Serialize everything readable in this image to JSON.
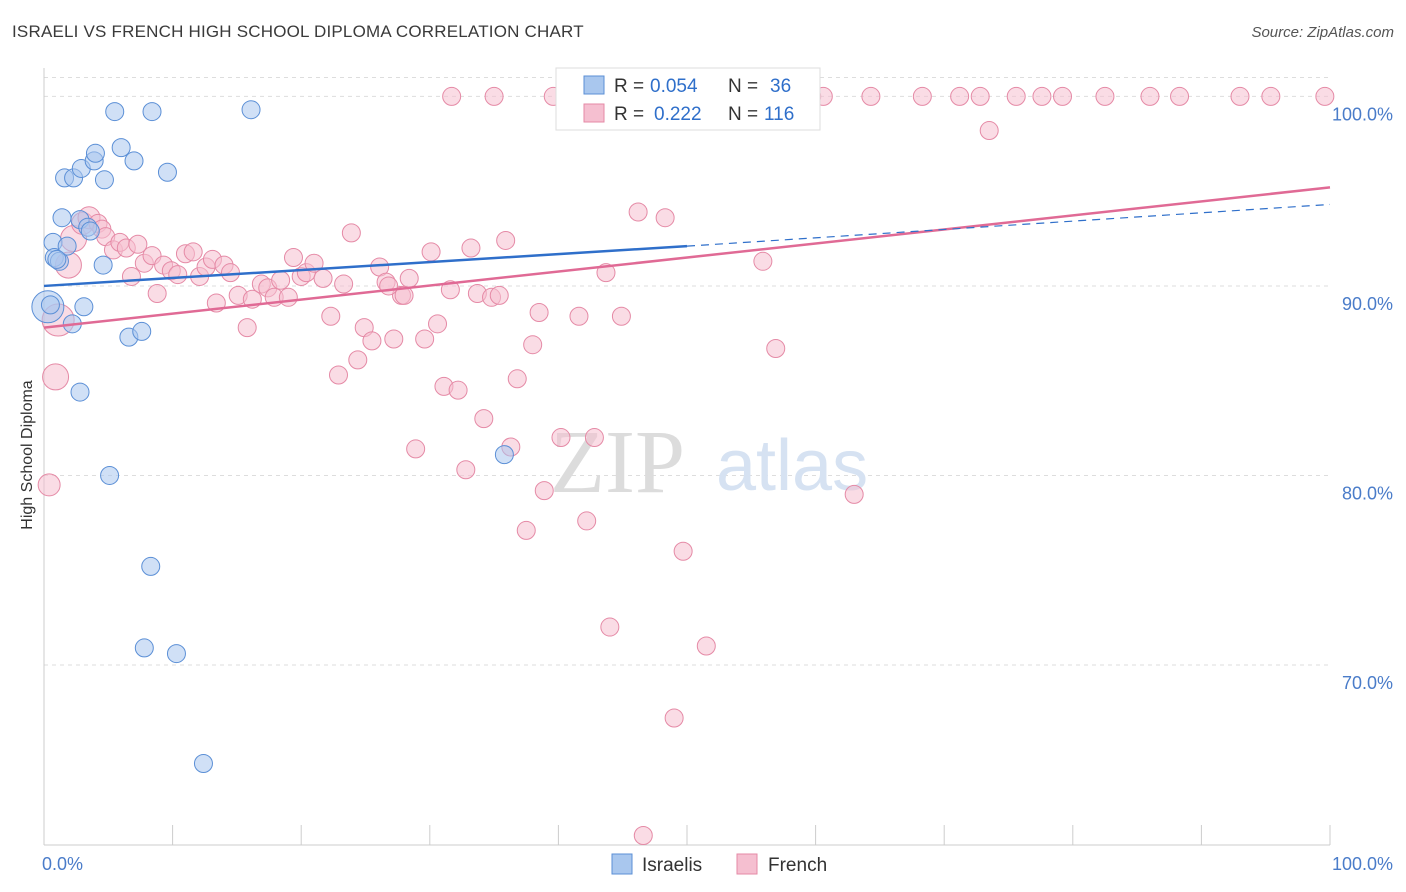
{
  "title": "ISRAELI VS FRENCH HIGH SCHOOL DIPLOMA CORRELATION CHART",
  "source": "Source: ZipAtlas.com",
  "watermark": {
    "zip": "ZIP",
    "atlas": "atlas"
  },
  "colors": {
    "israelis_fill": "#a9c7ee",
    "israelis_stroke": "#5b8fd6",
    "israelis_line": "#2f6fca",
    "french_fill": "#f5bfd0",
    "french_stroke": "#e58aa6",
    "french_line": "#e06a95",
    "tick_label": "#4a7cc9",
    "grid": "#dddddd"
  },
  "legend": {
    "rows": [
      {
        "r_label": "R =",
        "r_value": "0.054",
        "n_label": "N =",
        "n_value": "36"
      },
      {
        "r_label": "R =",
        "r_value": "0.222",
        "n_label": "N =",
        "n_value": "116"
      }
    ]
  },
  "bottom_legend": [
    "Israelis",
    "French"
  ],
  "chart_data": {
    "type": "scatter",
    "title": "ISRAELI VS FRENCH HIGH SCHOOL DIPLOMA CORRELATION CHART",
    "xlabel": "",
    "ylabel": "High School Diploma",
    "xlim": [
      0,
      100
    ],
    "ylim": [
      60.5,
      101.5
    ],
    "x_tick_labels": [
      "0.0%",
      "100.0%"
    ],
    "y_ticks": [
      70,
      80,
      90,
      100
    ],
    "y_tick_labels": [
      "70.0%",
      "80.0%",
      "90.0%",
      "100.0%"
    ],
    "grid": true,
    "legend_placement": "top-center",
    "series": [
      {
        "name": "Israelis",
        "r": 0.054,
        "n": 36,
        "trend": {
          "x": [
            0,
            50
          ],
          "y": [
            90.0,
            92.1
          ],
          "dashed_to": [
            100,
            94.3
          ]
        },
        "points": [
          [
            0.3,
            88.9,
            16
          ],
          [
            0.7,
            92.3,
            9
          ],
          [
            0.8,
            91.5,
            9
          ],
          [
            1.2,
            91.3,
            9
          ],
          [
            1.4,
            93.6,
            9
          ],
          [
            1.8,
            92.1,
            9
          ],
          [
            1.6,
            95.7,
            9
          ],
          [
            2.3,
            95.7,
            9
          ],
          [
            2.8,
            93.5,
            9
          ],
          [
            2.9,
            96.2,
            9
          ],
          [
            3.4,
            93.1,
            9
          ],
          [
            3.6,
            92.9,
            9
          ],
          [
            3.9,
            96.6,
            9
          ],
          [
            4.0,
            97.0,
            9
          ],
          [
            2.2,
            88.0,
            9
          ],
          [
            3.1,
            88.9,
            9
          ],
          [
            4.6,
            91.1,
            9
          ],
          [
            4.7,
            95.6,
            9
          ],
          [
            2.8,
            84.4,
            9
          ],
          [
            5.5,
            99.2,
            9
          ],
          [
            6.0,
            97.3,
            9
          ],
          [
            7.0,
            96.6,
            9
          ],
          [
            6.6,
            87.3,
            9
          ],
          [
            7.6,
            87.6,
            9
          ],
          [
            8.4,
            99.2,
            9
          ],
          [
            9.6,
            96.0,
            9
          ],
          [
            5.1,
            80.0,
            9
          ],
          [
            8.3,
            75.2,
            9
          ],
          [
            7.8,
            70.9,
            9
          ],
          [
            10.3,
            70.6,
            9
          ],
          [
            12.4,
            64.8,
            9
          ],
          [
            16.1,
            99.3,
            9
          ],
          [
            35.8,
            81.1,
            9
          ],
          [
            42.3,
            100.0,
            9
          ],
          [
            0.5,
            89.0,
            9
          ],
          [
            1.0,
            91.4,
            9
          ]
        ]
      },
      {
        "name": "French",
        "r": 0.222,
        "n": 116,
        "trend": {
          "x": [
            0,
            100
          ],
          "y": [
            87.8,
            95.2
          ]
        },
        "points": [
          [
            0.4,
            79.5,
            11
          ],
          [
            0.9,
            85.2,
            13
          ],
          [
            1.1,
            88.2,
            16
          ],
          [
            1.9,
            91.1,
            13
          ],
          [
            2.3,
            92.5,
            13
          ],
          [
            3.0,
            93.3,
            11
          ],
          [
            3.5,
            93.6,
            11
          ],
          [
            4.2,
            93.3,
            9
          ],
          [
            4.5,
            93.0,
            9
          ],
          [
            4.8,
            92.6,
            9
          ],
          [
            5.4,
            91.9,
            9
          ],
          [
            5.9,
            92.3,
            9
          ],
          [
            6.4,
            92.0,
            9
          ],
          [
            6.8,
            90.5,
            9
          ],
          [
            7.3,
            92.2,
            9
          ],
          [
            7.8,
            91.2,
            9
          ],
          [
            8.4,
            91.6,
            9
          ],
          [
            8.8,
            89.6,
            9
          ],
          [
            9.3,
            91.1,
            9
          ],
          [
            9.9,
            90.8,
            9
          ],
          [
            10.4,
            90.6,
            9
          ],
          [
            11.0,
            91.7,
            9
          ],
          [
            11.6,
            91.8,
            9
          ],
          [
            12.1,
            90.5,
            9
          ],
          [
            12.6,
            91.0,
            9
          ],
          [
            13.1,
            91.4,
            9
          ],
          [
            13.4,
            89.1,
            9
          ],
          [
            14.0,
            91.1,
            9
          ],
          [
            14.5,
            90.7,
            9
          ],
          [
            15.1,
            89.5,
            9
          ],
          [
            15.8,
            87.8,
            9
          ],
          [
            16.2,
            89.3,
            9
          ],
          [
            16.9,
            90.1,
            9
          ],
          [
            17.4,
            89.9,
            9
          ],
          [
            17.9,
            89.4,
            9
          ],
          [
            18.4,
            90.3,
            9
          ],
          [
            19.0,
            89.4,
            9
          ],
          [
            19.4,
            91.5,
            9
          ],
          [
            20.0,
            90.5,
            9
          ],
          [
            20.4,
            90.7,
            9
          ],
          [
            21.0,
            91.2,
            9
          ],
          [
            21.7,
            90.4,
            9
          ],
          [
            22.3,
            88.4,
            9
          ],
          [
            22.9,
            85.3,
            9
          ],
          [
            23.3,
            90.1,
            9
          ],
          [
            23.9,
            92.8,
            9
          ],
          [
            24.4,
            86.1,
            9
          ],
          [
            24.9,
            87.8,
            9
          ],
          [
            25.5,
            87.1,
            9
          ],
          [
            26.1,
            91.0,
            9
          ],
          [
            26.6,
            90.2,
            9
          ],
          [
            27.2,
            87.2,
            9
          ],
          [
            27.8,
            89.5,
            9
          ],
          [
            28.4,
            90.4,
            9
          ],
          [
            28.9,
            81.4,
            9
          ],
          [
            29.6,
            87.2,
            9
          ],
          [
            30.1,
            91.8,
            9
          ],
          [
            30.6,
            88.0,
            9
          ],
          [
            31.1,
            84.7,
            9
          ],
          [
            31.6,
            89.8,
            9
          ],
          [
            32.2,
            84.5,
            9
          ],
          [
            32.8,
            80.3,
            9
          ],
          [
            33.2,
            92.0,
            9
          ],
          [
            33.7,
            89.6,
            9
          ],
          [
            34.2,
            83.0,
            9
          ],
          [
            34.8,
            89.4,
            9
          ],
          [
            35.4,
            89.5,
            9
          ],
          [
            35.9,
            92.4,
            9
          ],
          [
            36.3,
            81.5,
            9
          ],
          [
            36.8,
            85.1,
            9
          ],
          [
            37.5,
            77.1,
            9
          ],
          [
            38.0,
            86.9,
            9
          ],
          [
            38.5,
            88.6,
            9
          ],
          [
            38.9,
            79.2,
            9
          ],
          [
            39.6,
            100.0,
            9
          ],
          [
            40.2,
            82.0,
            9
          ],
          [
            41.1,
            100.0,
            9
          ],
          [
            41.6,
            88.4,
            9
          ],
          [
            42.2,
            77.6,
            9
          ],
          [
            42.8,
            82.0,
            9
          ],
          [
            43.7,
            90.7,
            9
          ],
          [
            44.0,
            72.0,
            9
          ],
          [
            44.9,
            88.4,
            9
          ],
          [
            45.6,
            100.0,
            9
          ],
          [
            46.2,
            93.9,
            9
          ],
          [
            47.0,
            100.0,
            9
          ],
          [
            48.3,
            93.6,
            9
          ],
          [
            49.0,
            67.2,
            9
          ],
          [
            49.7,
            76.0,
            9
          ],
          [
            50.6,
            100.0,
            9
          ],
          [
            51.5,
            71.0,
            9
          ],
          [
            53.2,
            100.0,
            9
          ],
          [
            55.9,
            91.3,
            9
          ],
          [
            56.9,
            86.7,
            9
          ],
          [
            59.7,
            100.0,
            9
          ],
          [
            60.6,
            100.0,
            9
          ],
          [
            63.0,
            79.0,
            9
          ],
          [
            64.3,
            100.0,
            9
          ],
          [
            68.3,
            100.0,
            9
          ],
          [
            71.2,
            100.0,
            9
          ],
          [
            72.8,
            100.0,
            9
          ],
          [
            73.5,
            98.2,
            9
          ],
          [
            75.6,
            100.0,
            9
          ],
          [
            77.6,
            100.0,
            9
          ],
          [
            79.2,
            100.0,
            9
          ],
          [
            82.5,
            100.0,
            9
          ],
          [
            86.0,
            100.0,
            9
          ],
          [
            88.3,
            100.0,
            9
          ],
          [
            93.0,
            100.0,
            9
          ],
          [
            95.4,
            100.0,
            9
          ],
          [
            99.6,
            100.0,
            9
          ],
          [
            31.7,
            100.0,
            9
          ],
          [
            35.0,
            100.0,
            9
          ],
          [
            46.6,
            61.0,
            9
          ],
          [
            28.0,
            89.5,
            9
          ],
          [
            26.8,
            90.0,
            9
          ]
        ]
      }
    ]
  }
}
